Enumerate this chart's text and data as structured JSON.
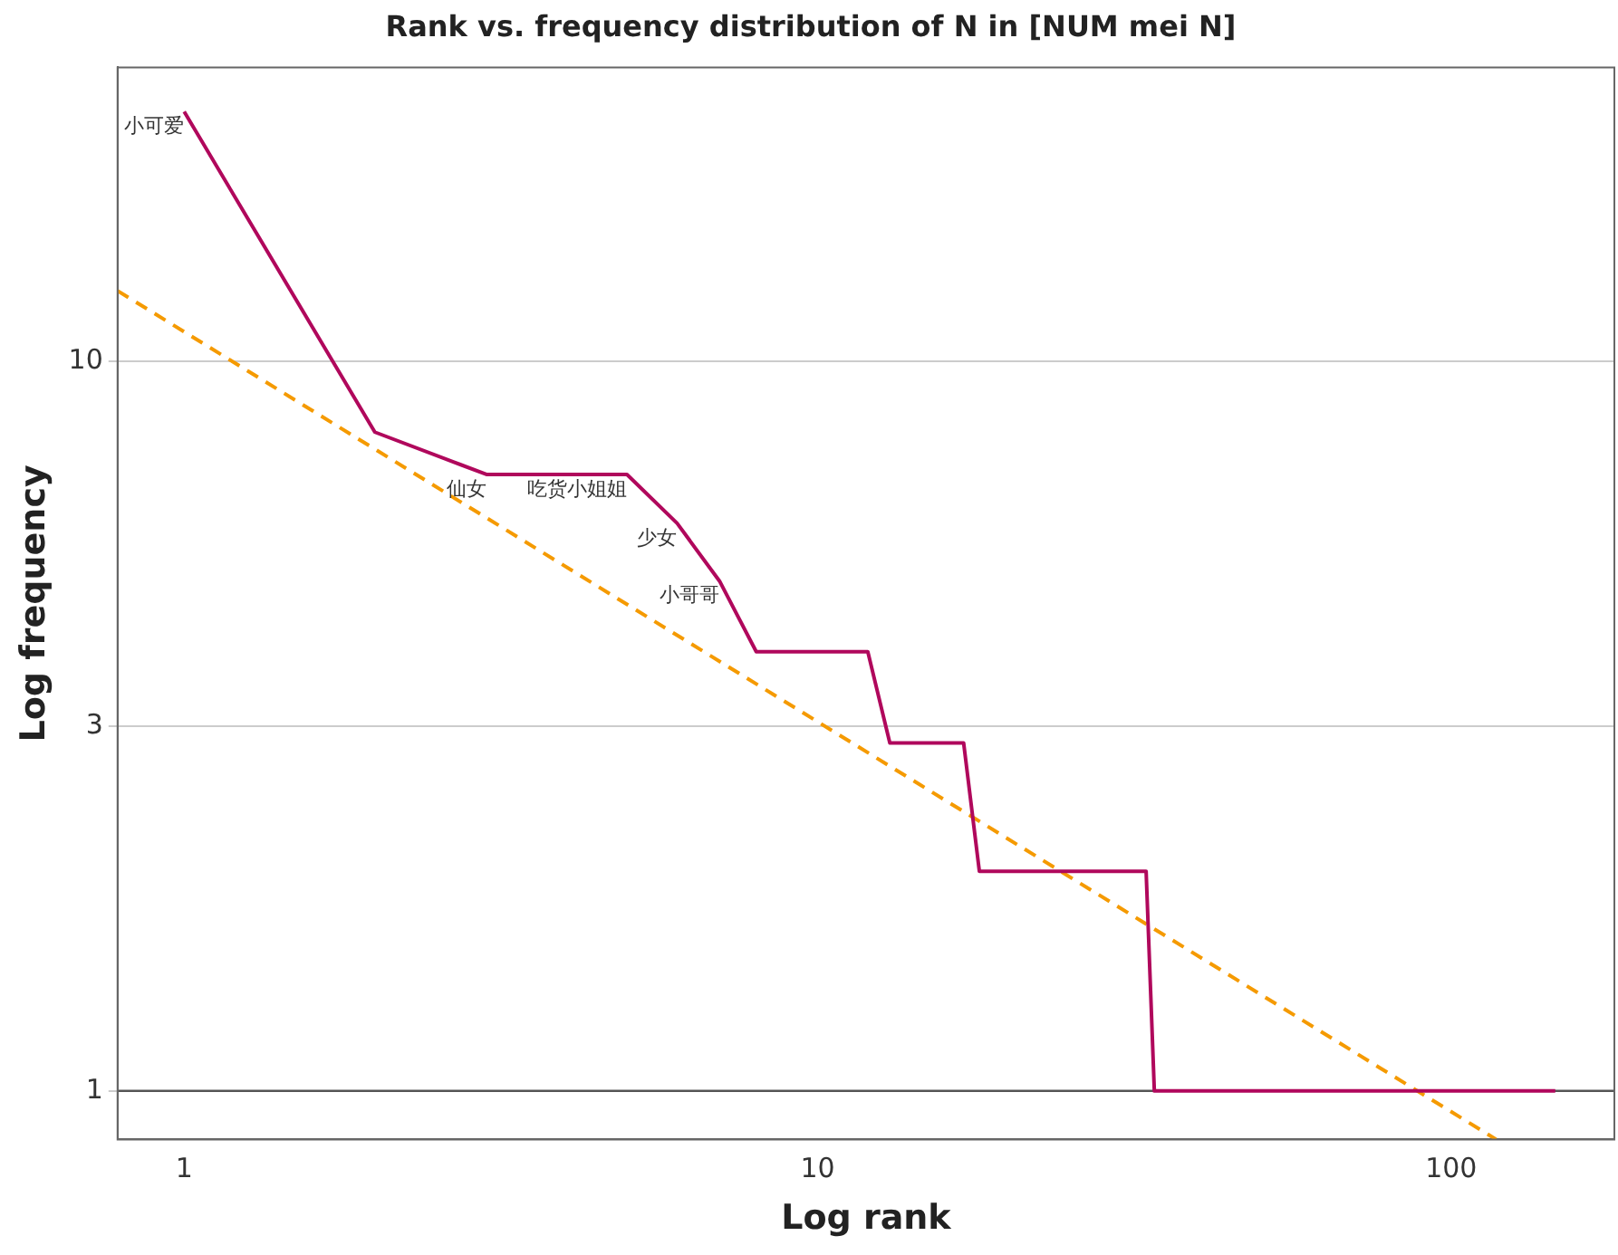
{
  "chart_data": {
    "type": "line",
    "title": "Rank vs. frequency distribution of N in [NUM mei N]",
    "xlabel": "Log rank",
    "ylabel": "Log frequency",
    "log": "xy",
    "xlim": [
      0.785,
      181
    ],
    "ylim": [
      0.858,
      25.3
    ],
    "xticks": [
      1,
      10,
      100
    ],
    "yticks": [
      1,
      {
        "value": 3.162,
        "label": "3"
      },
      10
    ],
    "grid": "y",
    "legend": false,
    "marker": "none",
    "series": [
      {
        "color": "#b0085c",
        "x": [
          1,
          2,
          3,
          5,
          6,
          7,
          8,
          12,
          13,
          17,
          18,
          33,
          34,
          146
        ],
        "values": [
          22,
          8,
          7,
          7,
          6,
          5,
          4,
          4,
          3,
          3,
          2,
          2,
          1,
          1
        ],
        "line_style": "solid"
      },
      {
        "type": "line",
        "color": "#f59a00",
        "x": [
          0.785,
          117.8
        ],
        "values": [
          12.5,
          0.858
        ],
        "line_style": "dashed"
      }
    ],
    "ref_lines": [
      {
        "axis": "y",
        "value": 1,
        "color": "#555555"
      }
    ],
    "annotations": [
      {
        "text": "小可爱",
        "x": 1,
        "y": 22
      },
      {
        "text": "仙女",
        "x": 3,
        "y": 7
      },
      {
        "text": "吃货小姐姐",
        "x": 5,
        "y": 7
      },
      {
        "text": "少女",
        "x": 6,
        "y": 6
      },
      {
        "text": "小哥哥",
        "x": 7,
        "y": 5
      }
    ]
  }
}
